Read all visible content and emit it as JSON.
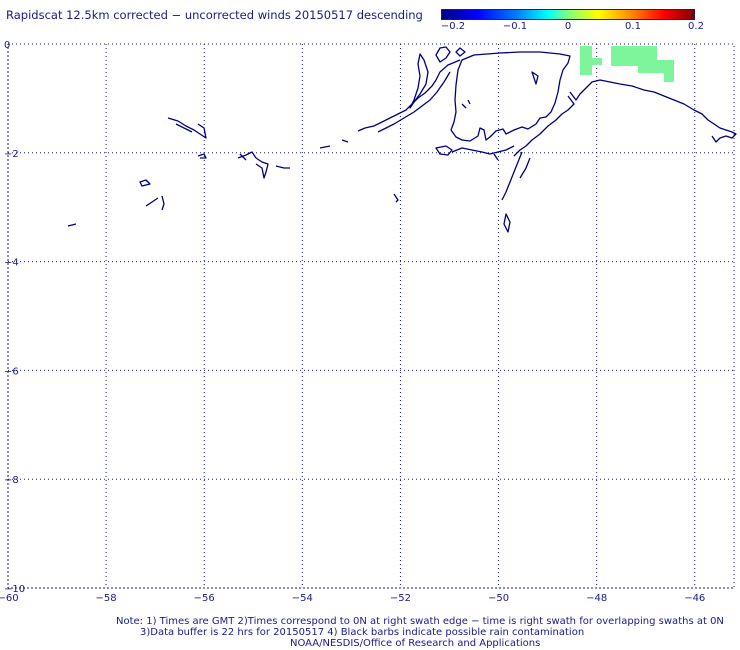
{
  "title": "Rapidscat 12.5km corrected − uncorrected winds 20150517 descending",
  "colorbar": {
    "ticks": [
      "−0.2",
      "−0.1",
      "0",
      "0.1",
      "0.2"
    ],
    "tick_values": [
      -0.2,
      -0.1,
      0,
      0.1,
      0.2
    ]
  },
  "axes": {
    "x_ticks": [
      "−60",
      "−58",
      "−56",
      "−54",
      "−52",
      "−50",
      "−48",
      "−46"
    ],
    "y_ticks": [
      "0",
      "−2",
      "−4",
      "−6",
      "−8",
      "−10"
    ],
    "x_range": [
      -60,
      -45.2
    ],
    "y_range": [
      -10,
      0
    ],
    "grid": true
  },
  "colors": {
    "text": "#1a1a8c",
    "coast": "#000080",
    "grid": "#1a1a8c",
    "wind_diff_patch": "#7ef59a"
  },
  "notes": {
    "line1": "Note: 1) Times are GMT 2)Times correspond to 0N at right swath edge − time is right swath for overlapping swaths at 0N",
    "line2": "3)Data buffer is 22 hrs for 20150517 4) Black barbs indicate possible rain contamination",
    "line3": "NOAA/NESDIS/Office of Research and Applications"
  }
}
